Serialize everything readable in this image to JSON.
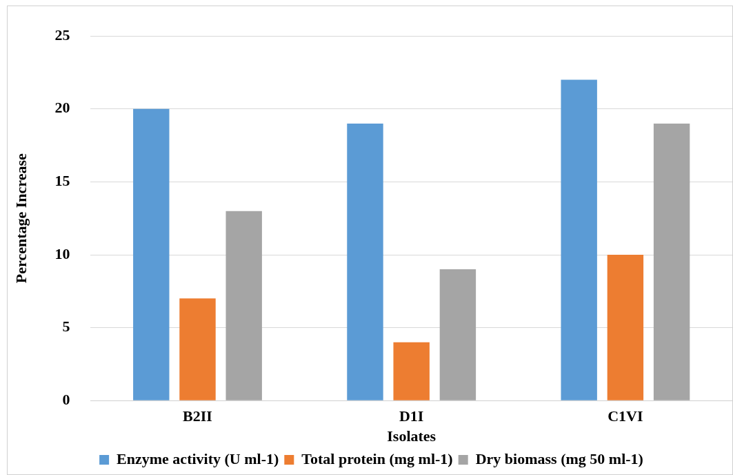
{
  "chart_data": {
    "type": "bar",
    "xlabel": "Isolates",
    "ylabel": "Percentage Increase",
    "categories": [
      "B2II",
      "D1I",
      "C1VI"
    ],
    "series": [
      {
        "name": "Enzyme activity (U ml-1)",
        "color": "#5b9bd5",
        "values": [
          20,
          19,
          22
        ]
      },
      {
        "name": "Total protein (mg ml-1)",
        "color": "#ed7d31",
        "values": [
          7,
          4,
          10
        ]
      },
      {
        "name": "Dry biomass (mg 50 ml-1)",
        "color": "#a5a5a5",
        "values": [
          13,
          9,
          19
        ]
      }
    ],
    "ylim": [
      0,
      25
    ],
    "yticks": [
      0,
      5,
      10,
      15,
      20,
      25
    ],
    "grid": "y",
    "legend": "bottom"
  }
}
